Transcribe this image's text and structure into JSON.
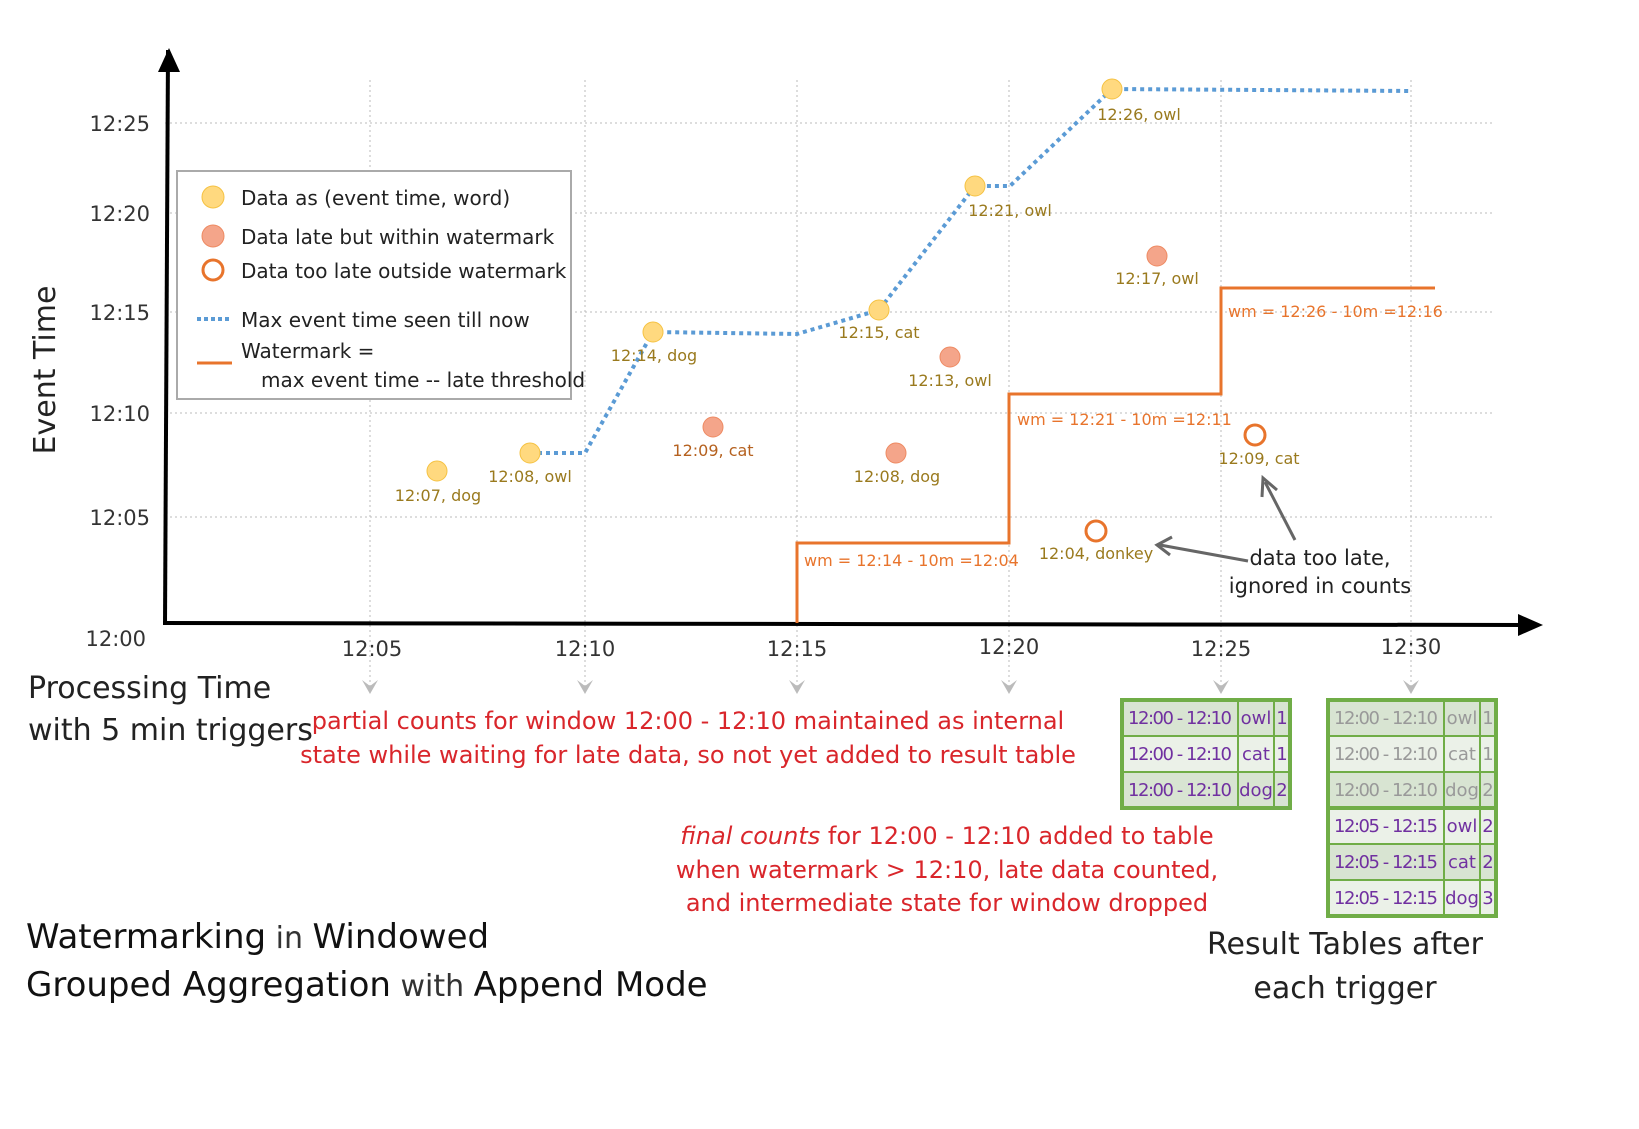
{
  "y_axis": {
    "label": "Event Time",
    "ticks": [
      "12:00",
      "12:05",
      "12:10",
      "12:15",
      "12:20",
      "12:25"
    ]
  },
  "x_axis": {
    "label_line1": "Processing Time",
    "label_line2": "with 5 min triggers",
    "ticks": [
      "12:05",
      "12:10",
      "12:15",
      "12:20",
      "12:25",
      "12:30"
    ]
  },
  "legend": {
    "data": "Data as (event time, word)",
    "late": "Data late but within watermark",
    "too_late": "Data too late outside watermark",
    "max": "Max event time seen till now",
    "wm1": "Watermark =",
    "wm2": "max event time -- late threshold"
  },
  "points": {
    "p1": "12:07, dog",
    "p2": "12:08, owl",
    "p3": "12:14, dog",
    "p4": "12:09, cat",
    "p5": "12:15, cat",
    "p6": "12:08, dog",
    "p7": "12:13, owl",
    "p8": "12:21, owl",
    "p9": "12:26, owl",
    "p10": "12:17, owl",
    "p11": "12:04, donkey",
    "p12": "12:09, cat"
  },
  "watermarks": [
    "wm = 12:14 - 10m =12:04",
    "wm = 12:21 - 10m =12:11",
    "wm = 12:26 - 10m =12:16"
  ],
  "annotations": {
    "too_late1": "data too late,",
    "too_late2": "ignored in counts",
    "partial1": "partial counts for window 12:00 - 12:10 maintained as internal",
    "partial2": "state while waiting for late data, so not yet added  to result table",
    "final_em": "final counts",
    "final1": " for 12:00 - 12:10 added to table",
    "final2": "when watermark > 12:10, late data counted,",
    "final3": "and intermediate state for window dropped"
  },
  "title": {
    "w1": "Watermarking",
    "w2": " in ",
    "w3": "Windowed",
    "w4": "Grouped Aggregation",
    "w5": " with ",
    "w6": "Append Mode"
  },
  "result_caption": {
    "line1": "Result Tables after",
    "line2": "each trigger"
  },
  "table1": [
    [
      "12:00 - 12:10",
      "owl",
      "1"
    ],
    [
      "12:00 - 12:10",
      "cat",
      "1"
    ],
    [
      "12:00 - 12:10",
      "dog",
      "2"
    ]
  ],
  "table2": [
    [
      "12:00 - 12:10",
      "owl",
      "1"
    ],
    [
      "12:00 - 12:10",
      "cat",
      "1"
    ],
    [
      "12:00 - 12:10",
      "dog",
      "2"
    ],
    [
      "12:05 - 12:15",
      "owl",
      "2"
    ],
    [
      "12:05 - 12:15",
      "cat",
      "2"
    ],
    [
      "12:05 - 12:15",
      "dog",
      "3"
    ]
  ],
  "colors": {
    "data": "#ffd97f",
    "late": "#f4a58a",
    "watermark": "#e8742c",
    "max": "#5b9bd5",
    "table_border": "#70ad47",
    "table_text": "#7030a0",
    "note": "#d9262b"
  }
}
